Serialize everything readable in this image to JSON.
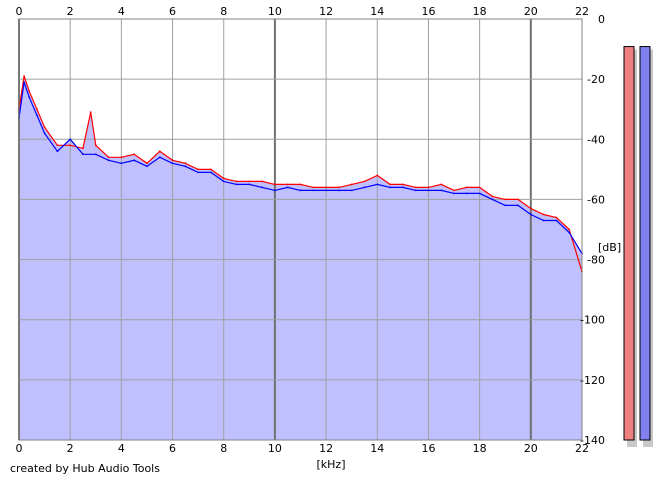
{
  "app": {
    "credit": "created by Hub Audio Tools"
  },
  "chart_data": {
    "type": "line",
    "title": "",
    "xlabel": "[kHz]",
    "ylabel": "[dB]",
    "xlim": [
      0,
      22
    ],
    "ylim": [
      -140,
      0
    ],
    "x_ticks": [
      "0",
      "2",
      "4",
      "6",
      "8",
      "10",
      "12",
      "14",
      "16",
      "18",
      "20",
      "22"
    ],
    "y_ticks": [
      "0",
      "-20",
      "-40",
      "-60",
      "-80",
      "-100",
      "-120",
      "-140"
    ],
    "grid": true,
    "x_ticks_top_and_bottom": true,
    "y_ticks_side": "right",
    "series": [
      {
        "color": "#ff0000",
        "x": [
          0,
          0.2,
          0.4,
          0.7,
          1,
          1.5,
          2,
          2.5,
          2.8,
          3,
          3.5,
          4,
          4.5,
          5,
          5.5,
          6,
          6.5,
          7,
          7.5,
          8,
          8.5,
          9,
          9.5,
          10,
          10.5,
          11,
          11.5,
          12,
          12.5,
          13,
          13.5,
          14,
          14.5,
          15,
          15.5,
          16,
          16.5,
          17,
          17.5,
          18,
          18.5,
          19,
          19.5,
          20,
          20.5,
          21,
          21.5,
          22
        ],
        "y": [
          -30,
          -19,
          -24,
          -30,
          -36,
          -42,
          -42,
          -43,
          -31,
          -42,
          -46,
          -46,
          -45,
          -48,
          -44,
          -47,
          -48,
          -50,
          -50,
          -53,
          -54,
          -54,
          -54,
          -55,
          -55,
          -55,
          -56,
          -56,
          -56,
          -55,
          -54,
          -52,
          -55,
          -55,
          -56,
          -56,
          -55,
          -57,
          -56,
          -56,
          -59,
          -60,
          -60,
          -63,
          -65,
          -66,
          -70,
          -84
        ]
      },
      {
        "color": "#0000ff",
        "x": [
          0,
          0.2,
          0.4,
          0.7,
          1,
          1.5,
          2,
          2.5,
          3,
          3.5,
          4,
          4.5,
          5,
          5.5,
          6,
          6.5,
          7,
          7.5,
          8,
          8.5,
          9,
          9.5,
          10,
          10.5,
          11,
          11.5,
          12,
          12.5,
          13,
          13.5,
          14,
          14.5,
          15,
          15.5,
          16,
          16.5,
          17,
          17.5,
          18,
          18.5,
          19,
          19.5,
          20,
          20.5,
          21,
          21.5,
          22
        ],
        "y": [
          -33,
          -21,
          -26,
          -32,
          -38,
          -44,
          -40,
          -45,
          -45,
          -47,
          -48,
          -47,
          -49,
          -46,
          -48,
          -49,
          -51,
          -51,
          -54,
          -55,
          -55,
          -56,
          -57,
          -56,
          -57,
          -57,
          -57,
          -57,
          -57,
          -56,
          -55,
          -56,
          -56,
          -57,
          -57,
          -57,
          -58,
          -58,
          -58,
          -60,
          -62,
          -62,
          -65,
          -67,
          -67,
          -71,
          -78
        ]
      }
    ],
    "fill_color": "#c0c0ff",
    "level_meters": [
      {
        "color": "#f08080",
        "level_db": -5
      },
      {
        "color": "#8080f0",
        "level_db": -5
      }
    ]
  }
}
